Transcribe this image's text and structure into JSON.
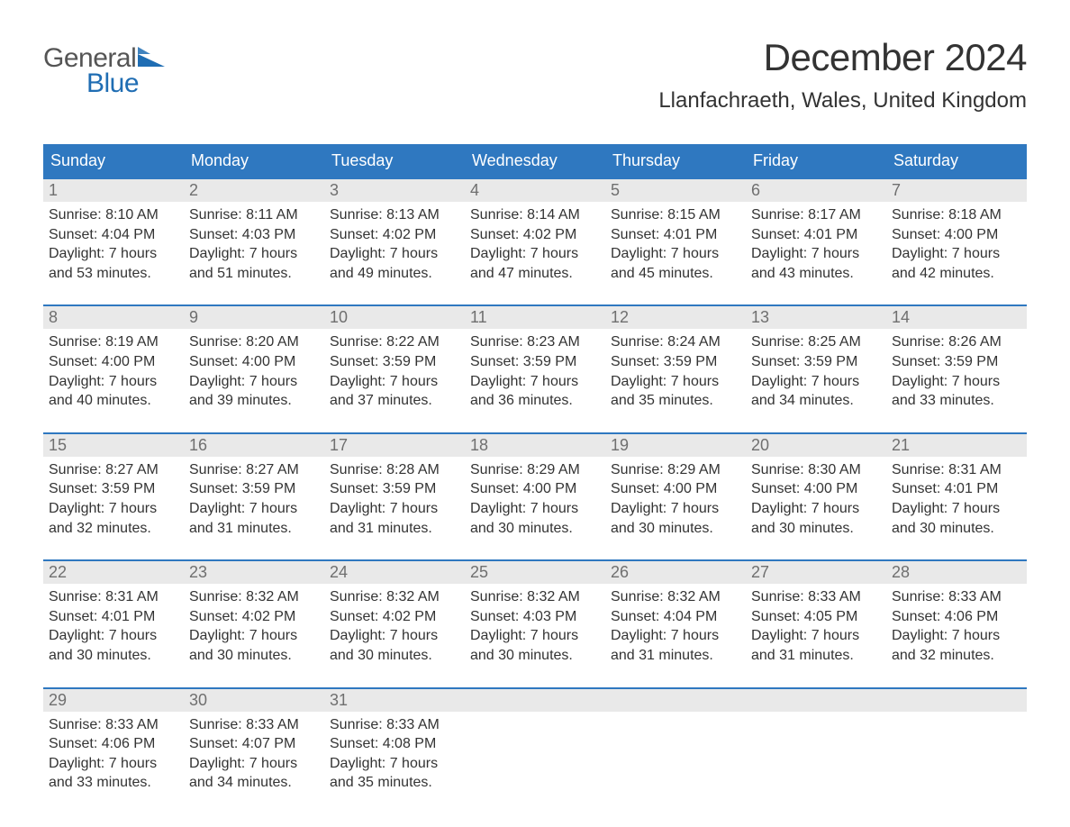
{
  "brand": {
    "line1": "General",
    "line2": "Blue",
    "text_color": "#555555",
    "accent_color": "#1f6db3"
  },
  "title": "December 2024",
  "location": "Llanfachraeth, Wales, United Kingdom",
  "colors": {
    "header_bg": "#2f78c0",
    "header_text": "#ffffff",
    "week_rule": "#2f78c0",
    "daynum_bg": "#e9e9e9",
    "daynum_text": "#6f6f6f",
    "body_text": "#333333",
    "page_bg": "#ffffff"
  },
  "fonts": {
    "title_pt": 42,
    "location_pt": 24,
    "header_pt": 18,
    "daynum_pt": 18,
    "body_pt": 16
  },
  "weekday_labels": [
    "Sunday",
    "Monday",
    "Tuesday",
    "Wednesday",
    "Thursday",
    "Friday",
    "Saturday"
  ],
  "weeks": [
    [
      {
        "n": "1",
        "sunrise": "8:10 AM",
        "sunset": "4:04 PM",
        "dl1": "Daylight: 7 hours",
        "dl2": "and 53 minutes."
      },
      {
        "n": "2",
        "sunrise": "8:11 AM",
        "sunset": "4:03 PM",
        "dl1": "Daylight: 7 hours",
        "dl2": "and 51 minutes."
      },
      {
        "n": "3",
        "sunrise": "8:13 AM",
        "sunset": "4:02 PM",
        "dl1": "Daylight: 7 hours",
        "dl2": "and 49 minutes."
      },
      {
        "n": "4",
        "sunrise": "8:14 AM",
        "sunset": "4:02 PM",
        "dl1": "Daylight: 7 hours",
        "dl2": "and 47 minutes."
      },
      {
        "n": "5",
        "sunrise": "8:15 AM",
        "sunset": "4:01 PM",
        "dl1": "Daylight: 7 hours",
        "dl2": "and 45 minutes."
      },
      {
        "n": "6",
        "sunrise": "8:17 AM",
        "sunset": "4:01 PM",
        "dl1": "Daylight: 7 hours",
        "dl2": "and 43 minutes."
      },
      {
        "n": "7",
        "sunrise": "8:18 AM",
        "sunset": "4:00 PM",
        "dl1": "Daylight: 7 hours",
        "dl2": "and 42 minutes."
      }
    ],
    [
      {
        "n": "8",
        "sunrise": "8:19 AM",
        "sunset": "4:00 PM",
        "dl1": "Daylight: 7 hours",
        "dl2": "and 40 minutes."
      },
      {
        "n": "9",
        "sunrise": "8:20 AM",
        "sunset": "4:00 PM",
        "dl1": "Daylight: 7 hours",
        "dl2": "and 39 minutes."
      },
      {
        "n": "10",
        "sunrise": "8:22 AM",
        "sunset": "3:59 PM",
        "dl1": "Daylight: 7 hours",
        "dl2": "and 37 minutes."
      },
      {
        "n": "11",
        "sunrise": "8:23 AM",
        "sunset": "3:59 PM",
        "dl1": "Daylight: 7 hours",
        "dl2": "and 36 minutes."
      },
      {
        "n": "12",
        "sunrise": "8:24 AM",
        "sunset": "3:59 PM",
        "dl1": "Daylight: 7 hours",
        "dl2": "and 35 minutes."
      },
      {
        "n": "13",
        "sunrise": "8:25 AM",
        "sunset": "3:59 PM",
        "dl1": "Daylight: 7 hours",
        "dl2": "and 34 minutes."
      },
      {
        "n": "14",
        "sunrise": "8:26 AM",
        "sunset": "3:59 PM",
        "dl1": "Daylight: 7 hours",
        "dl2": "and 33 minutes."
      }
    ],
    [
      {
        "n": "15",
        "sunrise": "8:27 AM",
        "sunset": "3:59 PM",
        "dl1": "Daylight: 7 hours",
        "dl2": "and 32 minutes."
      },
      {
        "n": "16",
        "sunrise": "8:27 AM",
        "sunset": "3:59 PM",
        "dl1": "Daylight: 7 hours",
        "dl2": "and 31 minutes."
      },
      {
        "n": "17",
        "sunrise": "8:28 AM",
        "sunset": "3:59 PM",
        "dl1": "Daylight: 7 hours",
        "dl2": "and 31 minutes."
      },
      {
        "n": "18",
        "sunrise": "8:29 AM",
        "sunset": "4:00 PM",
        "dl1": "Daylight: 7 hours",
        "dl2": "and 30 minutes."
      },
      {
        "n": "19",
        "sunrise": "8:29 AM",
        "sunset": "4:00 PM",
        "dl1": "Daylight: 7 hours",
        "dl2": "and 30 minutes."
      },
      {
        "n": "20",
        "sunrise": "8:30 AM",
        "sunset": "4:00 PM",
        "dl1": "Daylight: 7 hours",
        "dl2": "and 30 minutes."
      },
      {
        "n": "21",
        "sunrise": "8:31 AM",
        "sunset": "4:01 PM",
        "dl1": "Daylight: 7 hours",
        "dl2": "and 30 minutes."
      }
    ],
    [
      {
        "n": "22",
        "sunrise": "8:31 AM",
        "sunset": "4:01 PM",
        "dl1": "Daylight: 7 hours",
        "dl2": "and 30 minutes."
      },
      {
        "n": "23",
        "sunrise": "8:32 AM",
        "sunset": "4:02 PM",
        "dl1": "Daylight: 7 hours",
        "dl2": "and 30 minutes."
      },
      {
        "n": "24",
        "sunrise": "8:32 AM",
        "sunset": "4:02 PM",
        "dl1": "Daylight: 7 hours",
        "dl2": "and 30 minutes."
      },
      {
        "n": "25",
        "sunrise": "8:32 AM",
        "sunset": "4:03 PM",
        "dl1": "Daylight: 7 hours",
        "dl2": "and 30 minutes."
      },
      {
        "n": "26",
        "sunrise": "8:32 AM",
        "sunset": "4:04 PM",
        "dl1": "Daylight: 7 hours",
        "dl2": "and 31 minutes."
      },
      {
        "n": "27",
        "sunrise": "8:33 AM",
        "sunset": "4:05 PM",
        "dl1": "Daylight: 7 hours",
        "dl2": "and 31 minutes."
      },
      {
        "n": "28",
        "sunrise": "8:33 AM",
        "sunset": "4:06 PM",
        "dl1": "Daylight: 7 hours",
        "dl2": "and 32 minutes."
      }
    ],
    [
      {
        "n": "29",
        "sunrise": "8:33 AM",
        "sunset": "4:06 PM",
        "dl1": "Daylight: 7 hours",
        "dl2": "and 33 minutes."
      },
      {
        "n": "30",
        "sunrise": "8:33 AM",
        "sunset": "4:07 PM",
        "dl1": "Daylight: 7 hours",
        "dl2": "and 34 minutes."
      },
      {
        "n": "31",
        "sunrise": "8:33 AM",
        "sunset": "4:08 PM",
        "dl1": "Daylight: 7 hours",
        "dl2": "and 35 minutes."
      },
      null,
      null,
      null,
      null
    ]
  ],
  "labels": {
    "sunrise_prefix": "Sunrise: ",
    "sunset_prefix": "Sunset: "
  }
}
